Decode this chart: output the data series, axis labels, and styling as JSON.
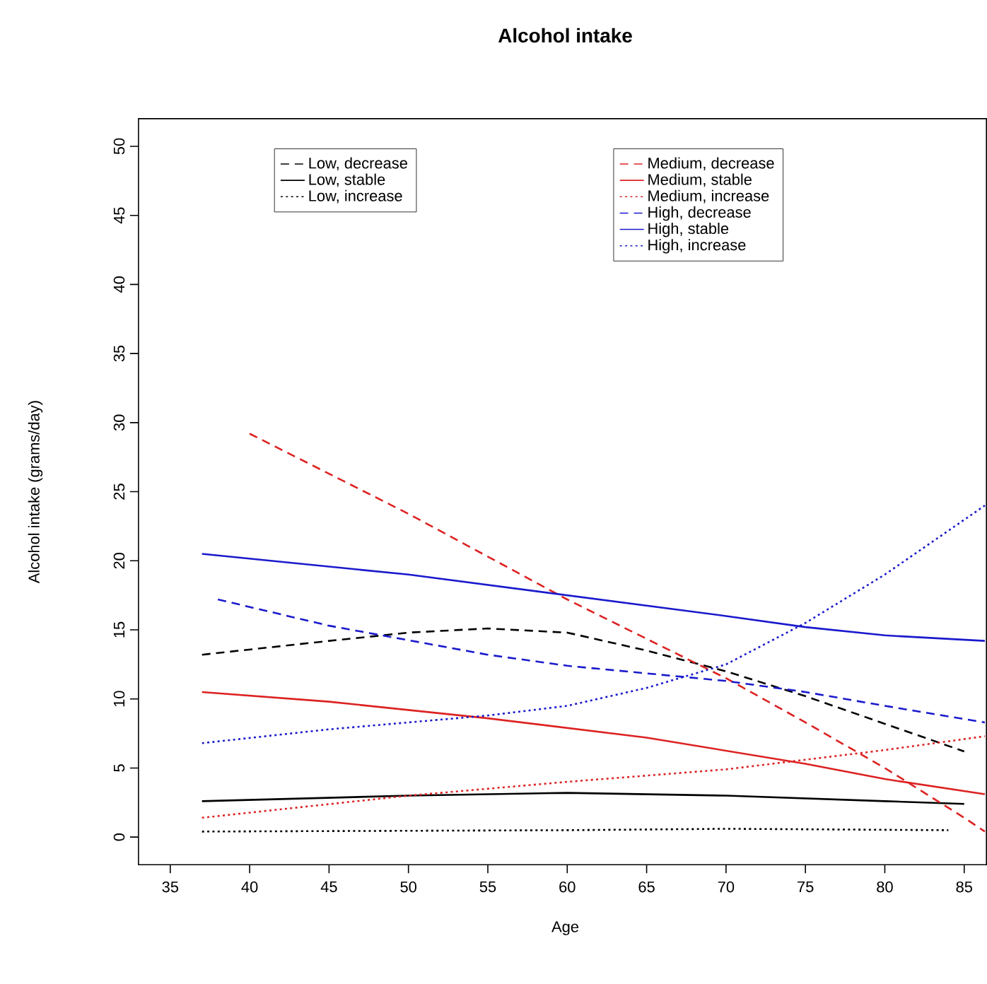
{
  "chart_data": {
    "type": "line",
    "title": "Alcohol intake",
    "xlabel": "Age",
    "ylabel": "Alcohol intake (grams/day)",
    "xlim": [
      33,
      86.4
    ],
    "ylim": [
      -2,
      52
    ],
    "xticks": [
      35,
      40,
      45,
      50,
      55,
      60,
      65,
      70,
      75,
      80,
      85
    ],
    "yticks": [
      0,
      5,
      10,
      15,
      20,
      25,
      30,
      35,
      40,
      45,
      50
    ],
    "legend": "top",
    "grid": false,
    "series": [
      {
        "name": "Low, decrease",
        "color": "#000000",
        "line_style": "dashed",
        "x": [
          37,
          45,
          50,
          55,
          60,
          65,
          70,
          75,
          80,
          85
        ],
        "values": [
          13.2,
          14.2,
          14.8,
          15.1,
          14.8,
          13.5,
          12,
          10.2,
          8.2,
          6.2
        ]
      },
      {
        "name": "Low, stable",
        "color": "#000000",
        "line_style": "solid",
        "x": [
          37,
          50,
          60,
          70,
          80,
          85
        ],
        "values": [
          2.6,
          3.0,
          3.2,
          3.0,
          2.6,
          2.4
        ]
      },
      {
        "name": "Low, increase",
        "color": "#000000",
        "line_style": "dotted",
        "x": [
          37,
          60,
          70,
          84
        ],
        "values": [
          0.4,
          0.5,
          0.6,
          0.5
        ]
      },
      {
        "name": "Medium, decrease",
        "color": "#dd2222",
        "line_style": "dashed",
        "x": [
          40,
          50,
          60,
          70,
          75,
          80,
          85,
          86.3
        ],
        "values": [
          29.2,
          23.4,
          17.2,
          11.5,
          8.3,
          5,
          1.4,
          0.4
        ]
      },
      {
        "name": "Medium, stable",
        "color": "#dd2222",
        "line_style": "solid",
        "x": [
          37,
          45,
          55,
          65,
          75,
          80,
          86.3
        ],
        "values": [
          10.5,
          9.8,
          8.6,
          7.2,
          5.3,
          4.2,
          3.1
        ]
      },
      {
        "name": "Medium, increase",
        "color": "#dd2222",
        "line_style": "dotted",
        "x": [
          37,
          50,
          60,
          70,
          80,
          86.3
        ],
        "values": [
          1.4,
          3.0,
          4.0,
          4.9,
          6.3,
          7.3
        ]
      },
      {
        "name": "High, decrease",
        "color": "#1a1acc",
        "line_style": "dashed",
        "x": [
          38,
          45,
          55,
          60,
          70,
          75,
          80,
          86.3
        ],
        "values": [
          17.2,
          15.3,
          13.2,
          12.4,
          11.3,
          10.5,
          9.5,
          8.3
        ]
      },
      {
        "name": "High, stable",
        "color": "#1a1acc",
        "line_style": "solid",
        "x": [
          37,
          50,
          60,
          70,
          75,
          80,
          86.3
        ],
        "values": [
          20.5,
          19.0,
          17.5,
          16,
          15.2,
          14.6,
          14.2
        ]
      },
      {
        "name": "High, increase",
        "color": "#1a1acc",
        "line_style": "dotted",
        "x": [
          37,
          45,
          55,
          60,
          65,
          70,
          75,
          80,
          86.3
        ],
        "values": [
          6.8,
          7.8,
          8.8,
          9.5,
          10.8,
          12.5,
          15.5,
          19,
          24
        ]
      }
    ]
  }
}
